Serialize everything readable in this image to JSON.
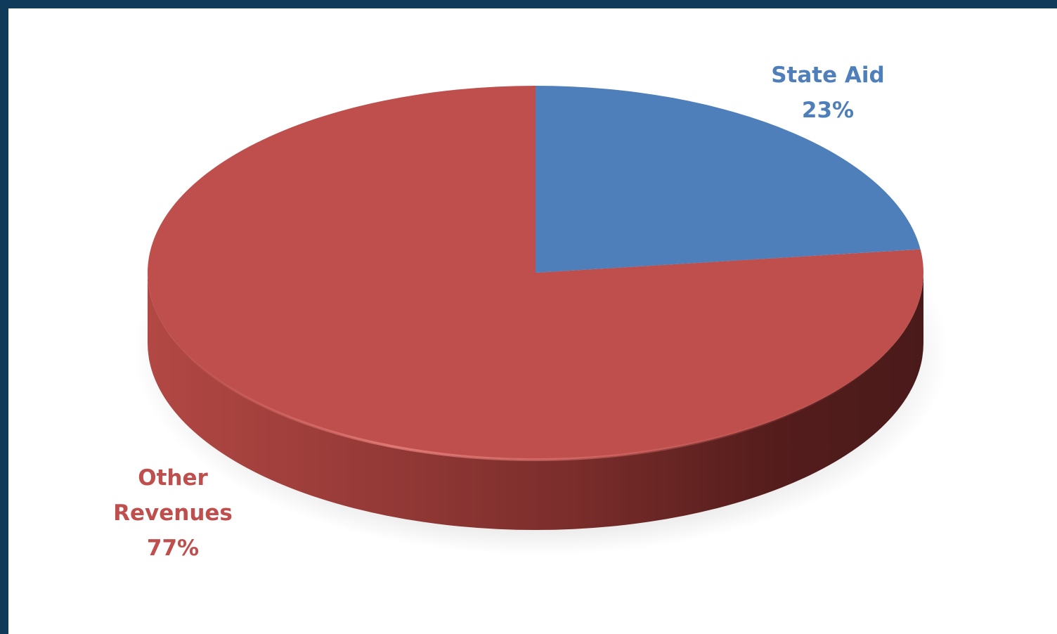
{
  "chart_data": {
    "type": "pie",
    "title": "",
    "slices": [
      {
        "name": "State Aid",
        "value": 23,
        "value_label": "23%",
        "color": "#4e7fba"
      },
      {
        "name": "Other Revenues",
        "value": 77,
        "value_label": "77%",
        "color": "#bf4f4c"
      }
    ],
    "legend": "none",
    "style": "3d-pie"
  },
  "labels": {
    "state_aid_line1": "State Aid",
    "state_aid_line2": "23%",
    "other_line1": "Other",
    "other_line2": "Revenues",
    "other_line3": "77%"
  },
  "colors": {
    "frame": "#0f3a5a",
    "state_aid_text": "#4e7fba",
    "other_text": "#bf4f4c"
  }
}
